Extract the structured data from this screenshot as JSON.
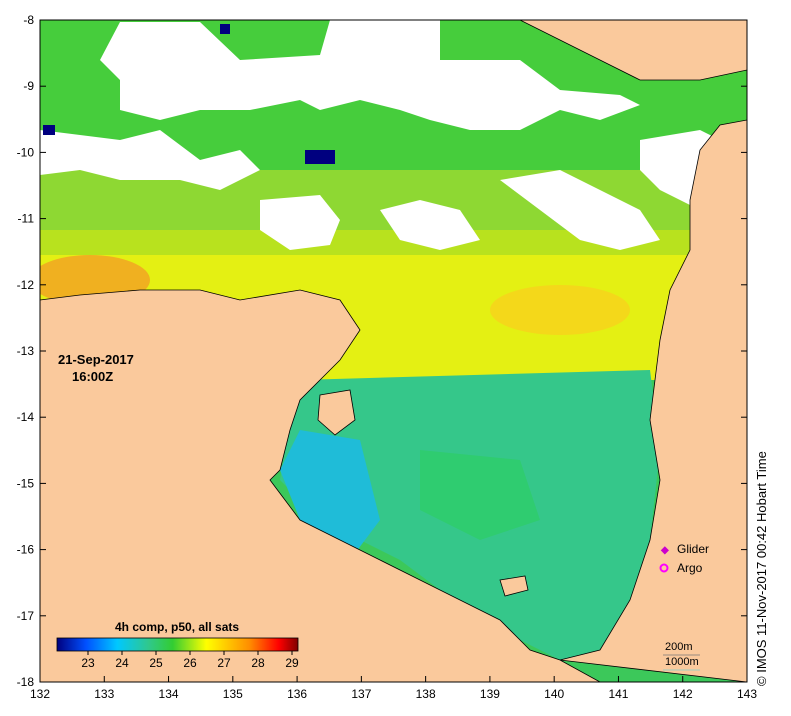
{
  "map": {
    "date": "21-Sep-2017",
    "time": "16:00Z",
    "x_ticks": [
      "132",
      "133",
      "134",
      "135",
      "136",
      "137",
      "138",
      "139",
      "140",
      "141",
      "142",
      "143"
    ],
    "y_ticks": [
      "-8",
      "-9",
      "-10",
      "-11",
      "-12",
      "-13",
      "-14",
      "-15",
      "-16",
      "-17",
      "-18"
    ],
    "colorbar": {
      "title": "4h comp, p50, all sats",
      "labels": [
        "23",
        "24",
        "25",
        "26",
        "27",
        "28",
        "29"
      ],
      "stops": [
        "#00007f",
        "#0050ff",
        "#00c8ff",
        "#30c88c",
        "#32cd32",
        "#ffff00",
        "#ff8c00",
        "#ff0000",
        "#7f0000"
      ]
    },
    "legend": {
      "glider": "Glider",
      "argo": "Argo",
      "glider_color": "#cc00cc",
      "argo_color": "#ff00ff"
    },
    "depth_labels": {
      "d200": "200m",
      "d1000": "1000m"
    },
    "credit": "IMOS 11-Nov-2017 00:42 Hobart Time",
    "copyright_symbol": "©",
    "colors": {
      "land": "#fac99c",
      "cloud": "#ffffff"
    }
  }
}
